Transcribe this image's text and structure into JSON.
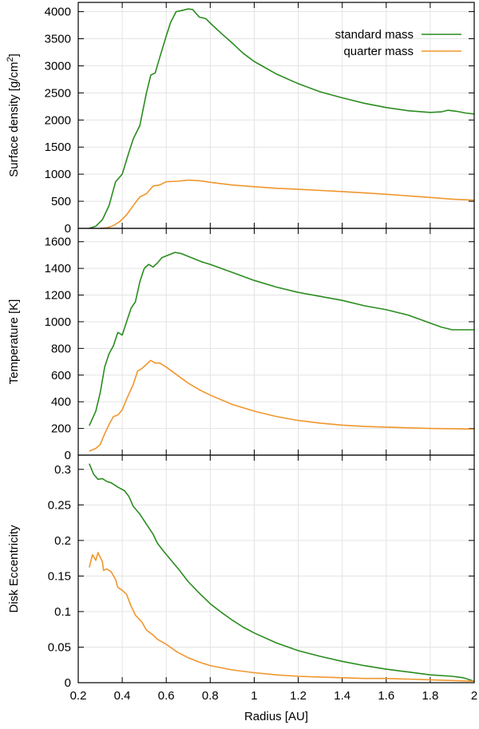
{
  "chart_data": [
    {
      "type": "line",
      "title": "",
      "ylabel": "Surface density [g/cm",
      "ylabel_sup": "2",
      "ylabel_end": "]",
      "xlim": [
        0.2,
        2
      ],
      "ylim": [
        0,
        4200
      ],
      "yticks": [
        0,
        500,
        1000,
        1500,
        2000,
        2500,
        3000,
        3500,
        4000
      ],
      "grid": true,
      "legend": "top-right",
      "series": [
        {
          "name": "standard mass",
          "color": "#2a8c1f",
          "points": [
            [
              0.25,
              0
            ],
            [
              0.28,
              40
            ],
            [
              0.31,
              160
            ],
            [
              0.34,
              420
            ],
            [
              0.37,
              860
            ],
            [
              0.4,
              1000
            ],
            [
              0.43,
              1400
            ],
            [
              0.45,
              1650
            ],
            [
              0.48,
              1900
            ],
            [
              0.51,
              2500
            ],
            [
              0.53,
              2830
            ],
            [
              0.55,
              2870
            ],
            [
              0.57,
              3150
            ],
            [
              0.6,
              3550
            ],
            [
              0.62,
              3800
            ],
            [
              0.645,
              4000
            ],
            [
              0.67,
              4020
            ],
            [
              0.7,
              4050
            ],
            [
              0.72,
              4040
            ],
            [
              0.75,
              3900
            ],
            [
              0.78,
              3870
            ],
            [
              0.81,
              3750
            ],
            [
              0.85,
              3600
            ],
            [
              0.9,
              3420
            ],
            [
              0.95,
              3230
            ],
            [
              1.0,
              3080
            ],
            [
              1.1,
              2850
            ],
            [
              1.2,
              2670
            ],
            [
              1.3,
              2520
            ],
            [
              1.4,
              2410
            ],
            [
              1.5,
              2310
            ],
            [
              1.6,
              2230
            ],
            [
              1.7,
              2170
            ],
            [
              1.8,
              2140
            ],
            [
              1.85,
              2150
            ],
            [
              1.88,
              2180
            ],
            [
              1.92,
              2160
            ],
            [
              1.96,
              2130
            ],
            [
              2.0,
              2110
            ]
          ]
        },
        {
          "name": "quarter mass",
          "color": "#f0962d",
          "points": [
            [
              0.3,
              0
            ],
            [
              0.33,
              10
            ],
            [
              0.36,
              50
            ],
            [
              0.39,
              130
            ],
            [
              0.42,
              250
            ],
            [
              0.45,
              420
            ],
            [
              0.48,
              580
            ],
            [
              0.51,
              640
            ],
            [
              0.54,
              780
            ],
            [
              0.57,
              800
            ],
            [
              0.6,
              860
            ],
            [
              0.65,
              870
            ],
            [
              0.7,
              890
            ],
            [
              0.75,
              880
            ],
            [
              0.8,
              850
            ],
            [
              0.9,
              800
            ],
            [
              1.0,
              770
            ],
            [
              1.1,
              740
            ],
            [
              1.2,
              720
            ],
            [
              1.3,
              700
            ],
            [
              1.4,
              680
            ],
            [
              1.5,
              655
            ],
            [
              1.6,
              630
            ],
            [
              1.7,
              600
            ],
            [
              1.8,
              570
            ],
            [
              1.9,
              540
            ],
            [
              2.0,
              520
            ]
          ]
        }
      ]
    },
    {
      "type": "line",
      "title": "",
      "ylabel": "Temperature [K]",
      "xlim": [
        0.2,
        2
      ],
      "ylim": [
        0,
        1700
      ],
      "yticks": [
        0,
        200,
        400,
        600,
        800,
        1000,
        1200,
        1400,
        1600
      ],
      "grid": true,
      "series": [
        {
          "color": "#2a8c1f",
          "points": [
            [
              0.25,
              220
            ],
            [
              0.28,
              330
            ],
            [
              0.3,
              470
            ],
            [
              0.32,
              660
            ],
            [
              0.34,
              760
            ],
            [
              0.36,
              820
            ],
            [
              0.38,
              920
            ],
            [
              0.4,
              900
            ],
            [
              0.42,
              1000
            ],
            [
              0.44,
              1100
            ],
            [
              0.46,
              1150
            ],
            [
              0.48,
              1300
            ],
            [
              0.5,
              1400
            ],
            [
              0.52,
              1430
            ],
            [
              0.54,
              1410
            ],
            [
              0.56,
              1440
            ],
            [
              0.58,
              1480
            ],
            [
              0.61,
              1500
            ],
            [
              0.64,
              1520
            ],
            [
              0.67,
              1510
            ],
            [
              0.7,
              1490
            ],
            [
              0.73,
              1470
            ],
            [
              0.76,
              1450
            ],
            [
              0.8,
              1430
            ],
            [
              0.85,
              1400
            ],
            [
              0.9,
              1370
            ],
            [
              1.0,
              1310
            ],
            [
              1.1,
              1260
            ],
            [
              1.2,
              1220
            ],
            [
              1.3,
              1190
            ],
            [
              1.4,
              1160
            ],
            [
              1.5,
              1120
            ],
            [
              1.6,
              1090
            ],
            [
              1.7,
              1050
            ],
            [
              1.8,
              990
            ],
            [
              1.85,
              960
            ],
            [
              1.9,
              940
            ],
            [
              2.0,
              940
            ]
          ]
        },
        {
          "color": "#f0962d",
          "points": [
            [
              0.25,
              30
            ],
            [
              0.28,
              50
            ],
            [
              0.3,
              80
            ],
            [
              0.32,
              160
            ],
            [
              0.34,
              230
            ],
            [
              0.36,
              290
            ],
            [
              0.38,
              300
            ],
            [
              0.4,
              340
            ],
            [
              0.42,
              420
            ],
            [
              0.45,
              530
            ],
            [
              0.47,
              630
            ],
            [
              0.49,
              650
            ],
            [
              0.51,
              680
            ],
            [
              0.53,
              710
            ],
            [
              0.55,
              690
            ],
            [
              0.57,
              690
            ],
            [
              0.6,
              660
            ],
            [
              0.65,
              600
            ],
            [
              0.7,
              540
            ],
            [
              0.75,
              490
            ],
            [
              0.8,
              450
            ],
            [
              0.9,
              380
            ],
            [
              1.0,
              330
            ],
            [
              1.1,
              290
            ],
            [
              1.2,
              260
            ],
            [
              1.3,
              240
            ],
            [
              1.4,
              225
            ],
            [
              1.5,
              215
            ],
            [
              1.6,
              210
            ],
            [
              1.7,
              205
            ],
            [
              1.8,
              200
            ],
            [
              1.9,
              198
            ],
            [
              2.0,
              195
            ]
          ]
        }
      ]
    },
    {
      "type": "line",
      "title": "",
      "ylabel": "Disk Eccentricity",
      "xlabel": "Radius [AU]",
      "xlim": [
        0.2,
        2
      ],
      "ylim": [
        0,
        0.32
      ],
      "xticks": [
        0.2,
        0.4,
        0.6,
        0.8,
        1,
        1.2,
        1.4,
        1.6,
        1.8,
        2
      ],
      "yticks": [
        0,
        0.05,
        0.1,
        0.15,
        0.2,
        0.25,
        0.3
      ],
      "grid": true,
      "series": [
        {
          "color": "#2a8c1f",
          "points": [
            [
              0.25,
              0.308
            ],
            [
              0.27,
              0.293
            ],
            [
              0.29,
              0.286
            ],
            [
              0.31,
              0.287
            ],
            [
              0.33,
              0.283
            ],
            [
              0.35,
              0.281
            ],
            [
              0.38,
              0.275
            ],
            [
              0.41,
              0.27
            ],
            [
              0.43,
              0.262
            ],
            [
              0.45,
              0.248
            ],
            [
              0.48,
              0.237
            ],
            [
              0.51,
              0.223
            ],
            [
              0.54,
              0.209
            ],
            [
              0.56,
              0.196
            ],
            [
              0.59,
              0.184
            ],
            [
              0.62,
              0.173
            ],
            [
              0.66,
              0.158
            ],
            [
              0.7,
              0.142
            ],
            [
              0.75,
              0.126
            ],
            [
              0.8,
              0.111
            ],
            [
              0.85,
              0.099
            ],
            [
              0.9,
              0.088
            ],
            [
              0.95,
              0.078
            ],
            [
              1.0,
              0.07
            ],
            [
              1.1,
              0.056
            ],
            [
              1.2,
              0.045
            ],
            [
              1.3,
              0.037
            ],
            [
              1.4,
              0.03
            ],
            [
              1.5,
              0.024
            ],
            [
              1.6,
              0.019
            ],
            [
              1.7,
              0.015
            ],
            [
              1.8,
              0.011
            ],
            [
              1.9,
              0.009
            ],
            [
              1.95,
              0.007
            ],
            [
              2.0,
              0.002
            ]
          ]
        },
        {
          "color": "#f0962d",
          "points": [
            [
              0.25,
              0.162
            ],
            [
              0.265,
              0.18
            ],
            [
              0.28,
              0.172
            ],
            [
              0.29,
              0.183
            ],
            [
              0.31,
              0.17
            ],
            [
              0.315,
              0.158
            ],
            [
              0.33,
              0.16
            ],
            [
              0.35,
              0.156
            ],
            [
              0.37,
              0.145
            ],
            [
              0.38,
              0.134
            ],
            [
              0.4,
              0.13
            ],
            [
              0.42,
              0.124
            ],
            [
              0.44,
              0.108
            ],
            [
              0.46,
              0.095
            ],
            [
              0.49,
              0.085
            ],
            [
              0.51,
              0.074
            ],
            [
              0.54,
              0.067
            ],
            [
              0.56,
              0.061
            ],
            [
              0.6,
              0.054
            ],
            [
              0.65,
              0.043
            ],
            [
              0.7,
              0.035
            ],
            [
              0.75,
              0.029
            ],
            [
              0.8,
              0.024
            ],
            [
              0.9,
              0.018
            ],
            [
              1.0,
              0.014
            ],
            [
              1.1,
              0.011
            ],
            [
              1.2,
              0.009
            ],
            [
              1.3,
              0.008
            ],
            [
              1.4,
              0.007
            ],
            [
              1.5,
              0.006
            ],
            [
              1.6,
              0.006
            ],
            [
              1.7,
              0.005
            ],
            [
              1.8,
              0.004
            ],
            [
              1.9,
              0.003
            ],
            [
              2.0,
              0.002
            ]
          ]
        }
      ]
    }
  ]
}
